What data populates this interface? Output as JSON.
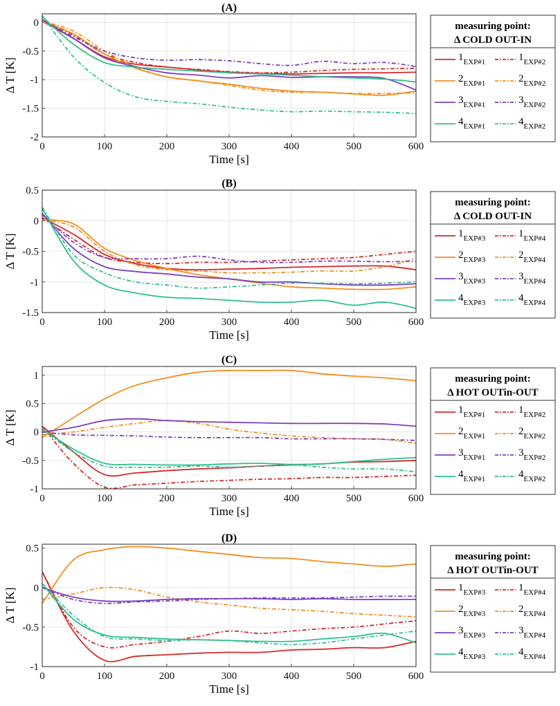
{
  "chart_data": [
    {
      "type": "line",
      "title": "(A)",
      "xlabel": "Time [s]",
      "ylabel": "Δ T [K]",
      "xlim": [
        0,
        600
      ],
      "ylim": [
        -2,
        0.15
      ],
      "xticks": [
        "0",
        "100",
        "200",
        "300",
        "400",
        "500",
        "600"
      ],
      "yticks": [
        "0",
        "-0.5",
        "-1",
        "-1.5",
        "-2"
      ],
      "grid": true,
      "legend": {
        "placement": "right",
        "title_line1": "measuring point:",
        "title_line2": "Δ COLD OUT-IN"
      },
      "x": [
        0,
        50,
        100,
        150,
        200,
        250,
        300,
        350,
        400,
        450,
        500,
        550,
        600
      ],
      "series": [
        {
          "name": "1 EXP#1",
          "label_main": "1",
          "label_sub": "EXP#1",
          "color": "#d62728",
          "dash": "solid",
          "values": [
            0.02,
            -0.28,
            -0.6,
            -0.73,
            -0.78,
            -0.83,
            -0.87,
            -0.89,
            -0.9,
            -0.89,
            -0.88,
            -0.88,
            -0.87
          ]
        },
        {
          "name": "1 EXP#2",
          "label_main": "1",
          "label_sub": "EXP#2",
          "color": "#d62728",
          "dash": "dashed",
          "values": [
            0.03,
            -0.22,
            -0.55,
            -0.7,
            -0.78,
            -0.82,
            -0.86,
            -0.88,
            -0.87,
            -0.84,
            -0.82,
            -0.81,
            -0.8
          ]
        },
        {
          "name": "2 EXP#1",
          "label_main": "2",
          "label_sub": "EXP#1",
          "color": "#f28e1c",
          "dash": "solid",
          "values": [
            0.02,
            -0.2,
            -0.55,
            -0.8,
            -0.95,
            -1.02,
            -1.08,
            -1.15,
            -1.2,
            -1.22,
            -1.25,
            -1.27,
            -1.2
          ]
        },
        {
          "name": "2 EXP#2",
          "label_main": "2",
          "label_sub": "EXP#2",
          "color": "#f28e1c",
          "dash": "dashed",
          "values": [
            0.02,
            -0.15,
            -0.5,
            -0.78,
            -0.95,
            -1.02,
            -1.1,
            -1.18,
            -1.22,
            -1.22,
            -1.24,
            -1.24,
            -1.23
          ]
        },
        {
          "name": "3 EXP#1",
          "label_main": "3",
          "label_sub": "EXP#1",
          "color": "#7b3fbf",
          "dash": "solid",
          "values": [
            0.05,
            -0.28,
            -0.62,
            -0.77,
            -0.88,
            -0.92,
            -0.97,
            -0.93,
            -0.96,
            -0.95,
            -0.95,
            -0.98,
            -1.18
          ]
        },
        {
          "name": "3 EXP#2",
          "label_main": "3",
          "label_sub": "EXP#2",
          "color": "#7b3fbf",
          "dash": "dashed",
          "values": [
            0.05,
            -0.25,
            -0.5,
            -0.62,
            -0.66,
            -0.65,
            -0.67,
            -0.72,
            -0.75,
            -0.68,
            -0.72,
            -0.7,
            -0.77
          ]
        },
        {
          "name": "4 EXP#1",
          "label_main": "4",
          "label_sub": "EXP#1",
          "color": "#2fbf8f",
          "dash": "solid",
          "values": [
            0.1,
            -0.38,
            -0.7,
            -0.78,
            -0.82,
            -0.85,
            -0.88,
            -0.9,
            -0.92,
            -0.95,
            -0.97,
            -0.99,
            -1.04
          ]
        },
        {
          "name": "4 EXP#2",
          "label_main": "4",
          "label_sub": "EXP#2",
          "color": "#2fbf8f",
          "dash": "dashed",
          "values": [
            0.12,
            -0.6,
            -1.05,
            -1.3,
            -1.38,
            -1.42,
            -1.48,
            -1.53,
            -1.56,
            -1.55,
            -1.56,
            -1.57,
            -1.59
          ]
        }
      ]
    },
    {
      "type": "line",
      "title": "(B)",
      "xlabel": "Time [s]",
      "ylabel": "Δ T [K]",
      "xlim": [
        0,
        600
      ],
      "ylim": [
        -1.5,
        0.5
      ],
      "xticks": [
        "0",
        "100",
        "200",
        "300",
        "400",
        "500",
        "600"
      ],
      "yticks": [
        "0.5",
        "0",
        "-0.5",
        "-1",
        "-1.5"
      ],
      "grid": true,
      "legend": {
        "placement": "right",
        "title_line1": "measuring point:",
        "title_line2": "Δ COLD OUT-IN"
      },
      "x": [
        0,
        50,
        100,
        150,
        200,
        250,
        300,
        350,
        400,
        450,
        500,
        550,
        600
      ],
      "series": [
        {
          "name": "1 EXP#3",
          "label_main": "1",
          "label_sub": "EXP#3",
          "color": "#d62728",
          "dash": "solid",
          "values": [
            0.05,
            -0.22,
            -0.55,
            -0.7,
            -0.78,
            -0.8,
            -0.79,
            -0.78,
            -0.76,
            -0.75,
            -0.74,
            -0.74,
            -0.8
          ]
        },
        {
          "name": "1 EXP#4",
          "label_main": "1",
          "label_sub": "EXP#4",
          "color": "#d62728",
          "dash": "dashed",
          "values": [
            0.05,
            -0.3,
            -0.6,
            -0.68,
            -0.7,
            -0.68,
            -0.68,
            -0.66,
            -0.64,
            -0.62,
            -0.6,
            -0.55,
            -0.5
          ]
        },
        {
          "name": "2 EXP#3",
          "label_main": "2",
          "label_sub": "EXP#3",
          "color": "#f28e1c",
          "dash": "solid",
          "values": [
            0.02,
            -0.05,
            -0.45,
            -0.65,
            -0.78,
            -0.88,
            -0.95,
            -1.02,
            -1.08,
            -1.1,
            -1.12,
            -1.12,
            -1.08
          ]
        },
        {
          "name": "2 EXP#4",
          "label_main": "2",
          "label_sub": "EXP#4",
          "color": "#f28e1c",
          "dash": "dashed",
          "values": [
            0.02,
            -0.1,
            -0.5,
            -0.72,
            -0.8,
            -0.82,
            -0.85,
            -0.85,
            -0.84,
            -0.82,
            -0.82,
            -0.75,
            -0.62
          ]
        },
        {
          "name": "3 EXP#3",
          "label_main": "3",
          "label_sub": "EXP#3",
          "color": "#7b3fbf",
          "dash": "solid",
          "values": [
            0.12,
            -0.45,
            -0.75,
            -0.83,
            -0.87,
            -0.92,
            -0.95,
            -1.0,
            -1.0,
            -1.03,
            -1.05,
            -1.05,
            -1.03
          ]
        },
        {
          "name": "3 EXP#4",
          "label_main": "3",
          "label_sub": "EXP#4",
          "color": "#7b3fbf",
          "dash": "dashed",
          "values": [
            0.1,
            -0.35,
            -0.6,
            -0.62,
            -0.62,
            -0.58,
            -0.64,
            -0.68,
            -0.68,
            -0.66,
            -0.66,
            -0.67,
            -0.66
          ]
        },
        {
          "name": "4 EXP#3",
          "label_main": "4",
          "label_sub": "EXP#3",
          "color": "#2fbf8f",
          "dash": "solid",
          "values": [
            0.2,
            -0.65,
            -1.05,
            -1.18,
            -1.25,
            -1.27,
            -1.3,
            -1.33,
            -1.33,
            -1.3,
            -1.38,
            -1.33,
            -1.43
          ]
        },
        {
          "name": "4 EXP#4",
          "label_main": "4",
          "label_sub": "EXP#4",
          "color": "#2fbf8f",
          "dash": "dashed",
          "values": [
            0.22,
            -0.55,
            -0.85,
            -1.0,
            -1.05,
            -1.1,
            -1.08,
            -1.05,
            -1.02,
            -1.02,
            -1.03,
            -1.02,
            -1.0
          ]
        }
      ]
    },
    {
      "type": "line",
      "title": "(C)",
      "xlabel": "Time [s]",
      "ylabel": "Δ T [K]",
      "xlim": [
        0,
        600
      ],
      "ylim": [
        -1,
        1.15
      ],
      "xticks": [
        "0",
        "100",
        "200",
        "300",
        "400",
        "500",
        "600"
      ],
      "yticks": [
        "1",
        "0.5",
        "0",
        "-0.5",
        "-1"
      ],
      "grid": true,
      "legend": {
        "placement": "right",
        "title_line1": "measuring point:",
        "title_line2": "Δ HOT OUTin-OUT"
      },
      "x": [
        0,
        50,
        100,
        150,
        200,
        250,
        300,
        350,
        400,
        450,
        500,
        550,
        600
      ],
      "series": [
        {
          "name": "1 EXP#1",
          "label_main": "1",
          "label_sub": "EXP#1",
          "color": "#d62728",
          "dash": "solid",
          "values": [
            0.1,
            -0.35,
            -0.75,
            -0.72,
            -0.68,
            -0.65,
            -0.63,
            -0.6,
            -0.58,
            -0.56,
            -0.53,
            -0.52,
            -0.5
          ]
        },
        {
          "name": "1 EXP#2",
          "label_main": "1",
          "label_sub": "EXP#2",
          "color": "#d62728",
          "dash": "dashed",
          "values": [
            0.1,
            -0.55,
            -0.97,
            -0.93,
            -0.9,
            -0.87,
            -0.85,
            -0.83,
            -0.82,
            -0.8,
            -0.8,
            -0.78,
            -0.76
          ]
        },
        {
          "name": "2 EXP#1",
          "label_main": "2",
          "label_sub": "EXP#1",
          "color": "#f28e1c",
          "dash": "solid",
          "values": [
            -0.1,
            0.25,
            0.58,
            0.82,
            0.95,
            1.05,
            1.08,
            1.08,
            1.08,
            1.02,
            0.98,
            0.95,
            0.9
          ]
        },
        {
          "name": "2 EXP#2",
          "label_main": "2",
          "label_sub": "EXP#2",
          "color": "#f28e1c",
          "dash": "dashed",
          "values": [
            -0.05,
            0.0,
            0.08,
            0.15,
            0.2,
            0.15,
            0.05,
            -0.02,
            -0.07,
            -0.1,
            -0.12,
            -0.13,
            -0.2
          ]
        },
        {
          "name": "3 EXP#1",
          "label_main": "3",
          "label_sub": "EXP#1",
          "color": "#7b3fbf",
          "dash": "solid",
          "values": [
            0.0,
            0.08,
            0.2,
            0.23,
            0.2,
            0.18,
            0.17,
            0.16,
            0.15,
            0.15,
            0.15,
            0.14,
            0.1
          ]
        },
        {
          "name": "3 EXP#2",
          "label_main": "3",
          "label_sub": "EXP#2",
          "color": "#7b3fbf",
          "dash": "dashed",
          "values": [
            0.0,
            -0.05,
            -0.06,
            -0.07,
            -0.09,
            -0.1,
            -0.1,
            -0.1,
            -0.12,
            -0.12,
            -0.12,
            -0.13,
            -0.15
          ]
        },
        {
          "name": "4 EXP#1",
          "label_main": "4",
          "label_sub": "EXP#1",
          "color": "#2fbf8f",
          "dash": "solid",
          "values": [
            0.05,
            -0.3,
            -0.55,
            -0.57,
            -0.58,
            -0.58,
            -0.56,
            -0.55,
            -0.57,
            -0.56,
            -0.52,
            -0.48,
            -0.45
          ]
        },
        {
          "name": "4 EXP#2",
          "label_main": "4",
          "label_sub": "EXP#2",
          "color": "#2fbf8f",
          "dash": "dashed",
          "values": [
            0.05,
            -0.35,
            -0.6,
            -0.62,
            -0.62,
            -0.6,
            -0.62,
            -0.6,
            -0.58,
            -0.62,
            -0.65,
            -0.65,
            -0.7
          ]
        }
      ]
    },
    {
      "type": "line",
      "title": "(D)",
      "xlabel": "Time [s]",
      "ylabel": "Δ T [K]",
      "xlim": [
        0,
        600
      ],
      "ylim": [
        -1,
        0.55
      ],
      "xticks": [
        "0",
        "100",
        "200",
        "300",
        "400",
        "500",
        "600"
      ],
      "yticks": [
        "0.5",
        "0",
        "-0.5",
        "-1"
      ],
      "grid": true,
      "legend": {
        "placement": "right",
        "title_line1": "measuring point:",
        "title_line2": "Δ HOT OUTin-OUT"
      },
      "x": [
        0,
        50,
        100,
        150,
        200,
        250,
        300,
        350,
        400,
        450,
        500,
        550,
        600
      ],
      "series": [
        {
          "name": "1 EXP#3",
          "label_main": "1",
          "label_sub": "EXP#3",
          "color": "#d62728",
          "dash": "solid",
          "values": [
            0.2,
            -0.55,
            -0.92,
            -0.87,
            -0.85,
            -0.83,
            -0.82,
            -0.82,
            -0.79,
            -0.78,
            -0.76,
            -0.76,
            -0.68
          ]
        },
        {
          "name": "1 EXP#4",
          "label_main": "1",
          "label_sub": "EXP#4",
          "color": "#d62728",
          "dash": "dashed",
          "values": [
            0.2,
            -0.5,
            -0.75,
            -0.72,
            -0.68,
            -0.62,
            -0.55,
            -0.58,
            -0.55,
            -0.52,
            -0.5,
            -0.46,
            -0.42
          ]
        },
        {
          "name": "2 EXP#3",
          "label_main": "2",
          "label_sub": "EXP#3",
          "color": "#f28e1c",
          "dash": "solid",
          "values": [
            -0.2,
            0.35,
            0.48,
            0.52,
            0.5,
            0.46,
            0.42,
            0.38,
            0.37,
            0.33,
            0.3,
            0.27,
            0.3
          ]
        },
        {
          "name": "2 EXP#4",
          "label_main": "2",
          "label_sub": "EXP#4",
          "color": "#f28e1c",
          "dash": "dashed",
          "values": [
            -0.15,
            -0.08,
            0.0,
            -0.03,
            -0.12,
            -0.18,
            -0.22,
            -0.26,
            -0.28,
            -0.3,
            -0.33,
            -0.35,
            -0.37
          ]
        },
        {
          "name": "3 EXP#3",
          "label_main": "3",
          "label_sub": "EXP#3",
          "color": "#7b3fbf",
          "dash": "solid",
          "values": [
            0.0,
            -0.12,
            -0.17,
            -0.17,
            -0.15,
            -0.14,
            -0.14,
            -0.14,
            -0.15,
            -0.14,
            -0.15,
            -0.15,
            -0.15
          ]
        },
        {
          "name": "3 EXP#4",
          "label_main": "3",
          "label_sub": "EXP#4",
          "color": "#7b3fbf",
          "dash": "dashed",
          "values": [
            0.0,
            -0.15,
            -0.2,
            -0.18,
            -0.17,
            -0.15,
            -0.14,
            -0.13,
            -0.13,
            -0.13,
            -0.12,
            -0.11,
            -0.11
          ]
        },
        {
          "name": "4 EXP#3",
          "label_main": "4",
          "label_sub": "EXP#3",
          "color": "#2fbf8f",
          "dash": "solid",
          "values": [
            0.05,
            -0.4,
            -0.6,
            -0.63,
            -0.65,
            -0.66,
            -0.67,
            -0.68,
            -0.68,
            -0.65,
            -0.62,
            -0.58,
            -0.7
          ]
        },
        {
          "name": "4 EXP#4",
          "label_main": "4",
          "label_sub": "EXP#4",
          "color": "#2fbf8f",
          "dash": "dashed",
          "values": [
            0.05,
            -0.35,
            -0.62,
            -0.65,
            -0.67,
            -0.66,
            -0.67,
            -0.7,
            -0.72,
            -0.7,
            -0.65,
            -0.6,
            -0.55
          ]
        }
      ]
    }
  ]
}
